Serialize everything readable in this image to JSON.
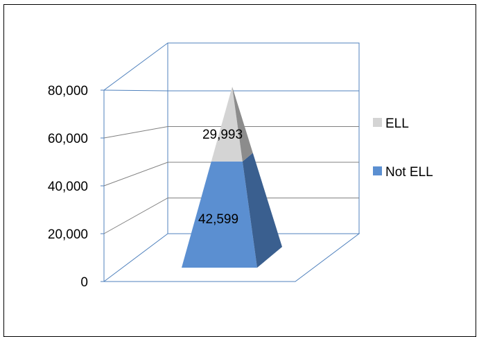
{
  "chart_data": {
    "type": "bar",
    "shape": "3d-pyramid-stacked",
    "categories": [
      ""
    ],
    "series": [
      {
        "name": "Not ELL",
        "values": [
          42599
        ],
        "data_label": "42,599",
        "color": "#5b8fd1",
        "side_color": "#3a5f8f"
      },
      {
        "name": "ELL",
        "values": [
          29993
        ],
        "data_label": "29,993",
        "color": "#d4d4d4",
        "side_color": "#8c8c8c"
      }
    ],
    "y_ticks": [
      "0",
      "20,000",
      "40,000",
      "60,000",
      "80,000"
    ],
    "ylim": [
      0,
      80000
    ],
    "grid": true,
    "legend": "right",
    "title": "",
    "xlabel": "",
    "ylabel": ""
  }
}
